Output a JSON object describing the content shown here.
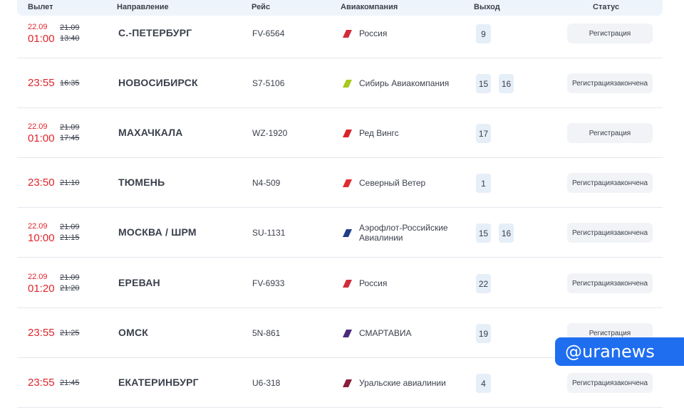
{
  "header": {
    "departure": "Вылет",
    "direction": "Направление",
    "flight": "Рейс",
    "airline": "Авиакомпания",
    "gate": "Выход",
    "status": "Статус"
  },
  "rows": [
    {
      "date": "22.09",
      "time": "01:00",
      "old_date": "21.09",
      "old_time": "13:40",
      "destination": "С.-ПЕТЕРБУРГ",
      "flight": "FV-6564",
      "airline_line1": "Россия",
      "airline_line2": "",
      "logo_color": "#d22b3b",
      "gates": [
        "9"
      ],
      "status_line1": "Регистрация",
      "status_line2": ""
    },
    {
      "date": "",
      "time": "23:55",
      "old_date": "",
      "old_time": "16:35",
      "destination": "НОВОСИБИРСК",
      "flight": "S7-5106",
      "airline_line1": "Сибирь Авиакомпания",
      "airline_line2": "",
      "logo_color": "#a6c91a",
      "gates": [
        "15",
        "16"
      ],
      "status_line1": "Регистрация",
      "status_line2": "закончена"
    },
    {
      "date": "22.09",
      "time": "01:00",
      "old_date": "21.09",
      "old_time": "17:45",
      "destination": "МАХАЧКАЛА",
      "flight": "WZ-1920",
      "airline_line1": "Ред Вингс",
      "airline_line2": "",
      "logo_color": "#d8232a",
      "gates": [
        "17"
      ],
      "status_line1": "Регистрация",
      "status_line2": ""
    },
    {
      "date": "",
      "time": "23:50",
      "old_date": "",
      "old_time": "21:10",
      "destination": "ТЮМЕНЬ",
      "flight": "N4-509",
      "airline_line1": "Северный Ветер",
      "airline_line2": "",
      "logo_color": "#e02a2f",
      "gates": [
        "1"
      ],
      "status_line1": "Регистрация",
      "status_line2": "закончена"
    },
    {
      "date": "22.09",
      "time": "10:00",
      "old_date": "21.09",
      "old_time": "21:15",
      "destination": "МОСКВА / ШРМ",
      "flight": "SU-1131",
      "airline_line1": "Аэрофлот-Российские",
      "airline_line2": "Авиалинии",
      "logo_color": "#1f3d8a",
      "gates": [
        "15",
        "16"
      ],
      "status_line1": "Регистрация",
      "status_line2": "закончена"
    },
    {
      "date": "22.09",
      "time": "01:20",
      "old_date": "21.09",
      "old_time": "21:20",
      "destination": "ЕРЕВАН",
      "flight": "FV-6933",
      "airline_line1": "Россия",
      "airline_line2": "",
      "logo_color": "#d22b3b",
      "gates": [
        "22"
      ],
      "status_line1": "Регистрация",
      "status_line2": "закончена"
    },
    {
      "date": "",
      "time": "23:55",
      "old_date": "",
      "old_time": "21:25",
      "destination": "ОМСК",
      "flight": "5N-861",
      "airline_line1": "СМАРТАВИА",
      "airline_line2": "",
      "logo_color": "#4a2a7a",
      "gates": [
        "19"
      ],
      "status_line1": "Регистрация",
      "status_line2": ""
    },
    {
      "date": "",
      "time": "23:55",
      "old_date": "",
      "old_time": "21:45",
      "destination": "ЕКАТЕРИНБУРГ",
      "flight": "U6-318",
      "airline_line1": "Уральские авиалинии",
      "airline_line2": "",
      "logo_color": "#8b1e3a",
      "gates": [
        "4"
      ],
      "status_line1": "Регистрация",
      "status_line2": "закончена"
    }
  ],
  "watermark": "@uranews"
}
